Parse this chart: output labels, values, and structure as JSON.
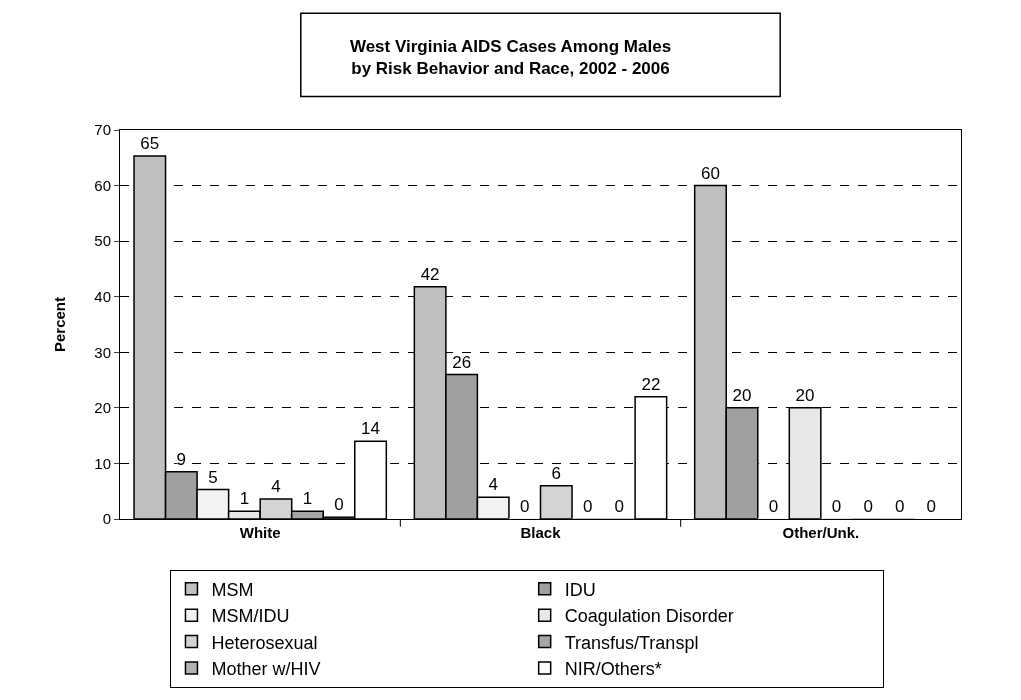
{
  "chart_data": {
    "type": "bar",
    "title": "West Virginia AIDS Cases Among Males\nby Risk Behavior and Race, 2002 - 2006",
    "ylabel": "Percent",
    "categories": [
      "White",
      "Black",
      "Other/Unk."
    ],
    "series": [
      {
        "name": "MSM",
        "color": "#c0c0c0",
        "values": [
          65.3,
          41.8,
          60
        ],
        "value_labels": [
          "65",
          "42",
          "60"
        ]
      },
      {
        "name": "IDU",
        "color": "#a0a0a0",
        "values": [
          8.5,
          26,
          20
        ],
        "value_labels": [
          "9",
          "26",
          "20"
        ]
      },
      {
        "name": "MSM/IDU",
        "color": "#f2f2f2",
        "values": [
          5.3,
          3.9,
          0
        ],
        "value_labels": [
          "5",
          "4",
          "0"
        ]
      },
      {
        "name": "Coagulation Disorder",
        "color": "#e8e8e8",
        "values": [
          1.4,
          0,
          20
        ],
        "value_labels": [
          "1",
          "0",
          "20"
        ]
      },
      {
        "name": "Heterosexual",
        "color": "#d4d4d4",
        "values": [
          3.6,
          6,
          0
        ],
        "value_labels": [
          "4",
          "6",
          "0"
        ]
      },
      {
        "name": "Transfus/Transpl",
        "color": "#a6a6a6",
        "values": [
          1.4,
          0,
          0
        ],
        "value_labels": [
          "1",
          "0",
          "0"
        ]
      },
      {
        "name": "Mother w/HIV",
        "color": "#b2b2b2",
        "values": [
          0.3,
          0,
          0
        ],
        "value_labels": [
          "0",
          "0",
          "0"
        ]
      },
      {
        "name": "NIR/Others*",
        "color": "#ffffff",
        "values": [
          14,
          22,
          0
        ],
        "value_labels": [
          "14",
          "22",
          "0"
        ]
      }
    ],
    "ylim": [
      0,
      70
    ],
    "yticks": [
      0,
      10,
      20,
      30,
      40,
      50,
      60,
      70
    ],
    "grid": "y",
    "legend": "bottom"
  }
}
